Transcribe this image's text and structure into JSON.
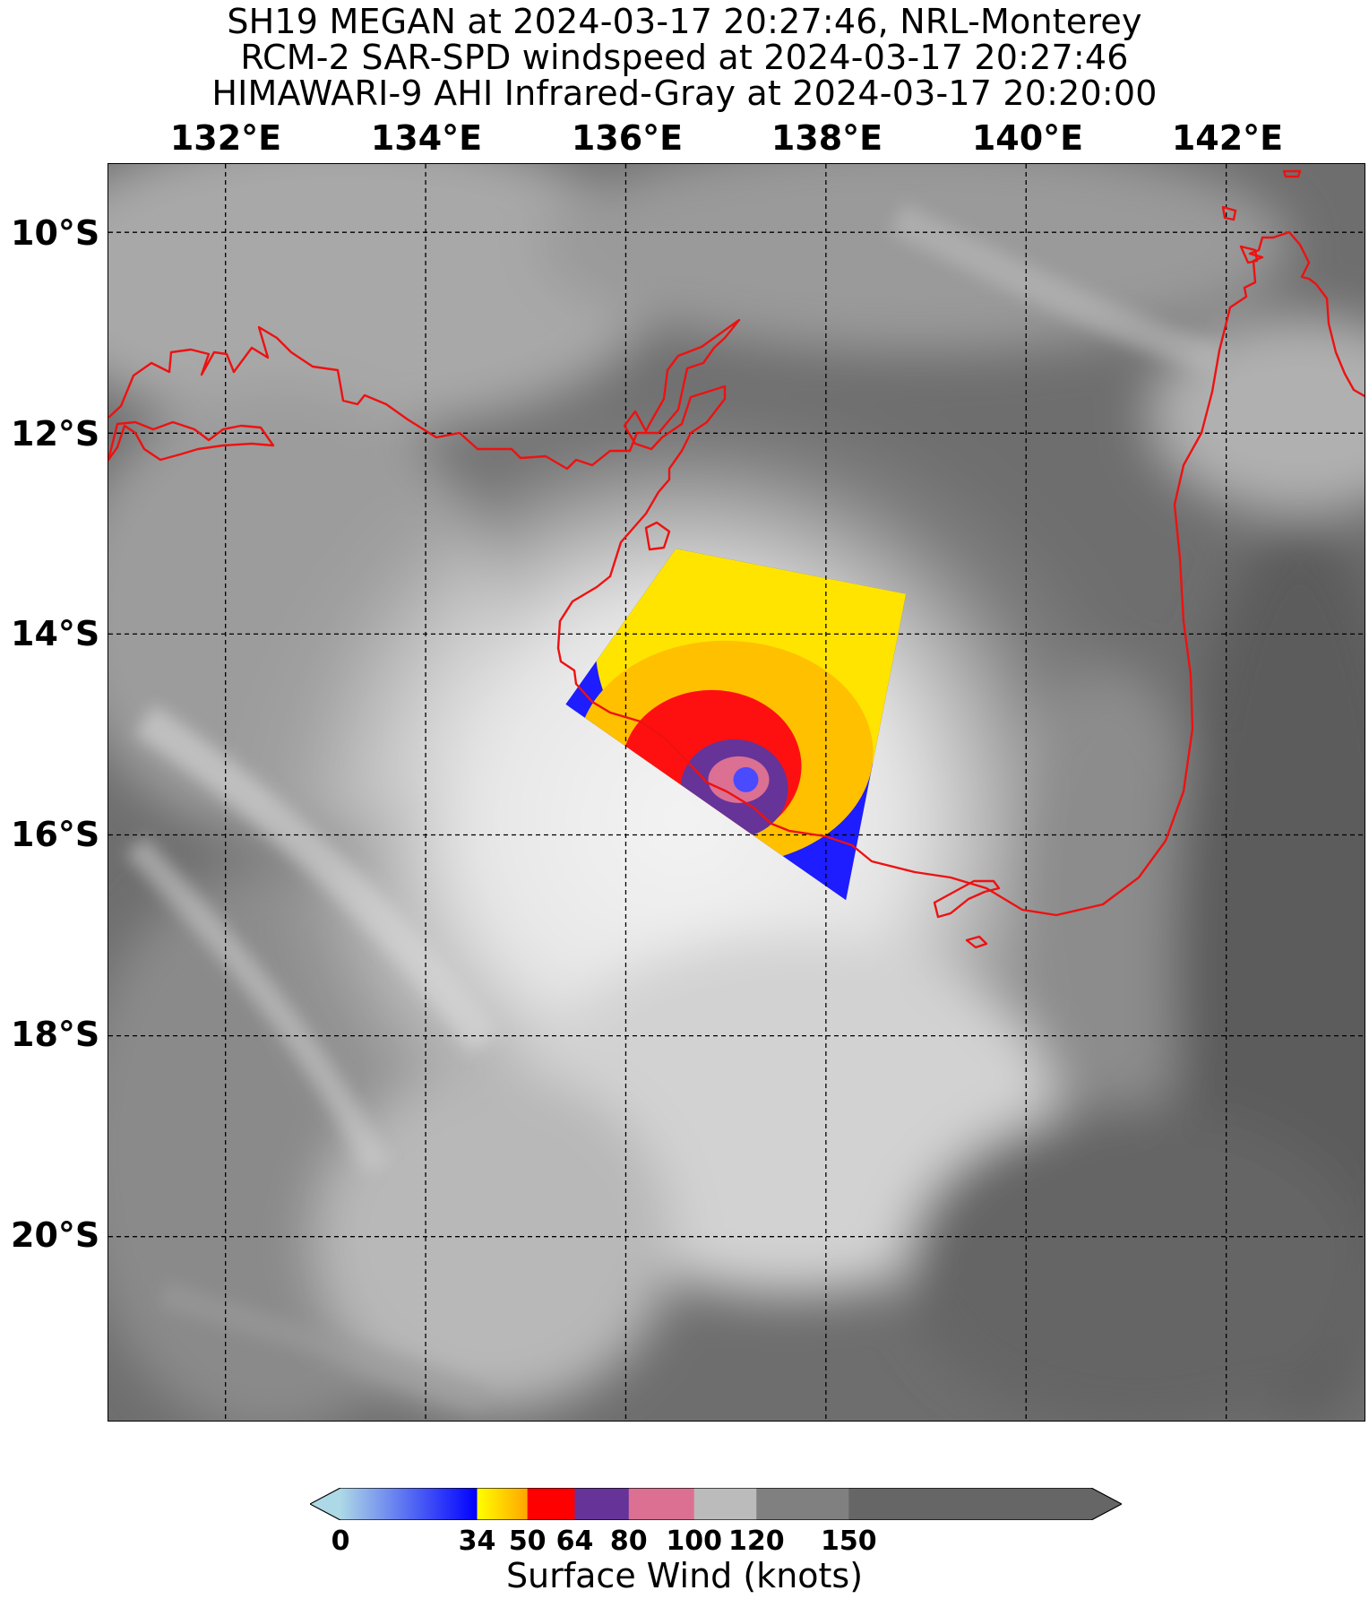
{
  "title": {
    "line1": "SH19 MEGAN at 2024-03-17 20:27:46, NRL-Monterey",
    "line2": "RCM-2 SAR-SPD windspeed at 2024-03-17 20:27:46",
    "line3": "HIMAWARI-9 AHI Infrared-Gray at 2024-03-17 20:20:00"
  },
  "axes": {
    "lon_labels": [
      "132°E",
      "134°E",
      "136°E",
      "138°E",
      "140°E",
      "142°E"
    ],
    "lat_labels": [
      "10°S",
      "12°S",
      "14°S",
      "16°S",
      "18°S",
      "20°S"
    ],
    "lon_values": [
      132,
      134,
      136,
      138,
      140,
      142
    ],
    "lat_values": [
      -10,
      -12,
      -14,
      -16,
      -18,
      -20
    ],
    "lon_range": [
      130.83,
      143.4
    ],
    "lat_range": [
      -21.85,
      -9.32
    ],
    "gridlines": true,
    "coastline_color": "#ee1111"
  },
  "colorbar": {
    "label": "Surface Wind (knots)",
    "tick_labels": [
      "0",
      "34",
      "50",
      "64",
      "80",
      "100",
      "120",
      "150"
    ],
    "segments": [
      {
        "from": 0,
        "to": 34,
        "colors": [
          "#add8e6",
          "#0000ff"
        ]
      },
      {
        "from": 34,
        "to": 50,
        "colors": [
          "#ffff00",
          "#ffa500"
        ]
      },
      {
        "from": 50,
        "to": 64,
        "colors": [
          "#ff0000"
        ]
      },
      {
        "from": 64,
        "to": 80,
        "colors": [
          "#663399"
        ]
      },
      {
        "from": 80,
        "to": 100,
        "colors": [
          "#db7093"
        ]
      },
      {
        "from": 100,
        "to": 120,
        "colors": [
          "#bbbbbb"
        ]
      },
      {
        "from": 120,
        "to": 150,
        "colors": [
          "#808080"
        ]
      },
      {
        "from": 150,
        "to": 180,
        "colors": [
          "#666666"
        ]
      }
    ],
    "extend": "both"
  },
  "sar_swath": {
    "corners_lonlat": [
      [
        136.5,
        -13.15
      ],
      [
        138.8,
        -13.6
      ],
      [
        138.2,
        -16.65
      ],
      [
        135.4,
        -14.7
      ]
    ],
    "center_lonlat": [
      137.2,
      -15.45
    ]
  }
}
